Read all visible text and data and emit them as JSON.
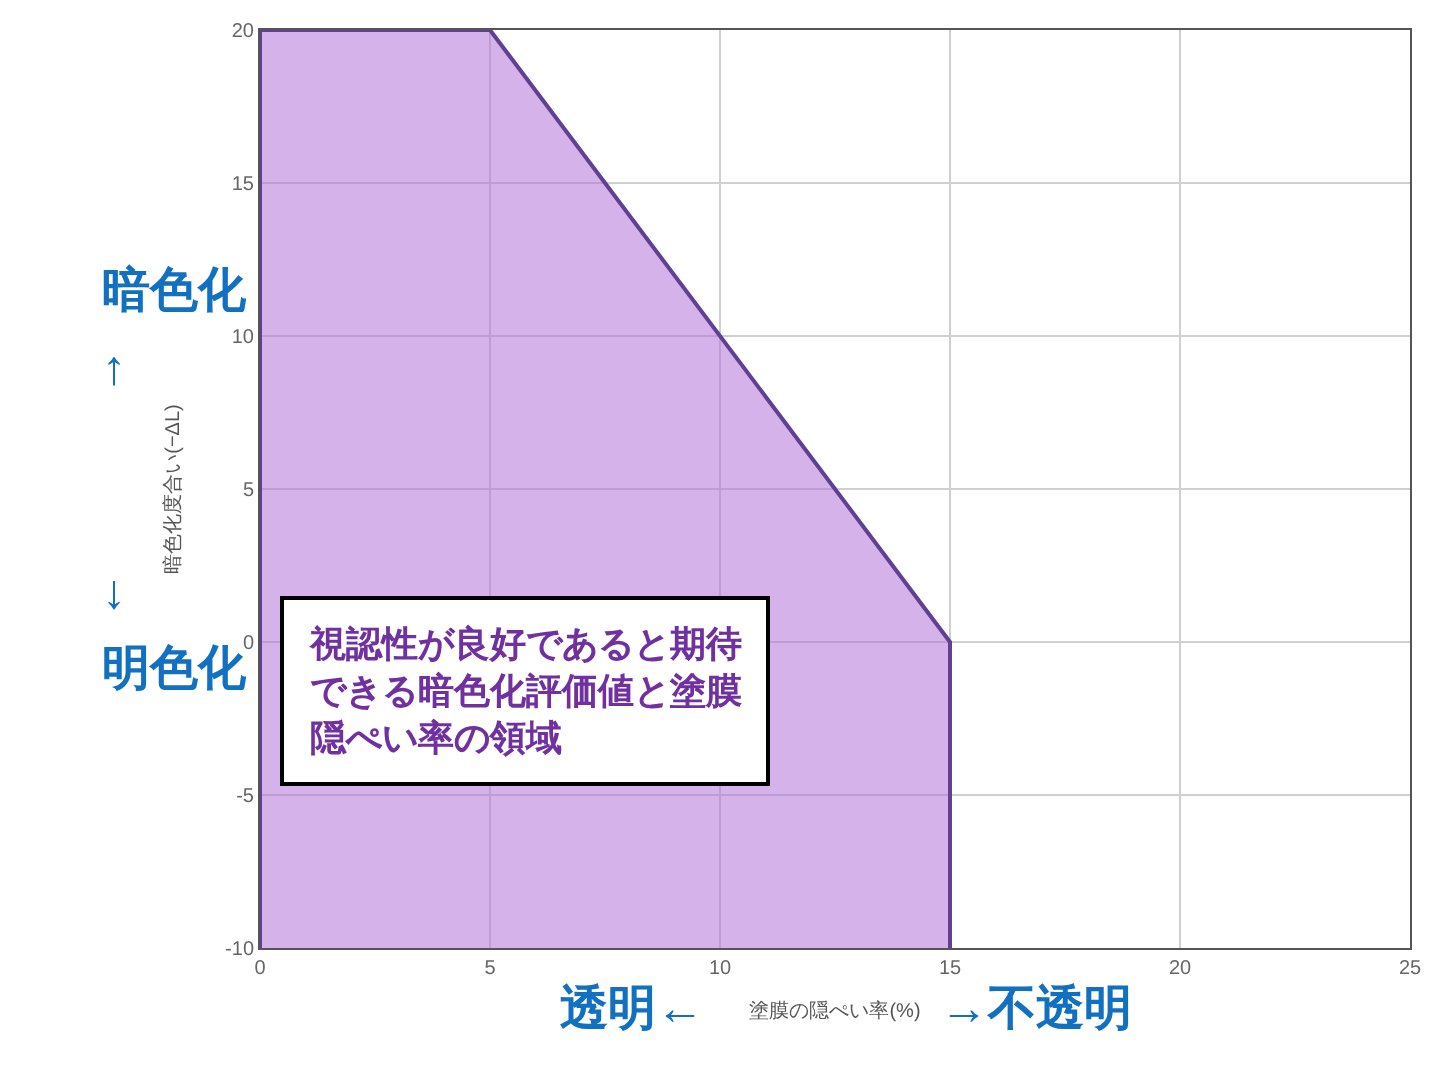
{
  "chart_data": {
    "type": "area",
    "xlabel": "塗膜の隠ぺい率(%)",
    "ylabel": "暗色化度合い(−ΔL)",
    "x": [
      0,
      0,
      5,
      15,
      15
    ],
    "series": [
      {
        "color": "#b070d8",
        "values": [
          -10,
          20,
          20,
          0,
          -10
        ]
      }
    ],
    "xlim": [
      0,
      25
    ],
    "xticks": [
      0,
      5,
      10,
      15,
      20,
      25
    ],
    "ylim": [
      -10,
      20
    ],
    "yticks": [
      -10,
      -5,
      0,
      5,
      10,
      15,
      20
    ],
    "grid": true,
    "annotations": [
      "視認性が良好であると期待できる暗色化評価値と塗膜隠ぺい率の領域",
      "暗色化",
      "↑",
      "↓",
      "明色化",
      "透明←",
      "→不透明"
    ]
  }
}
